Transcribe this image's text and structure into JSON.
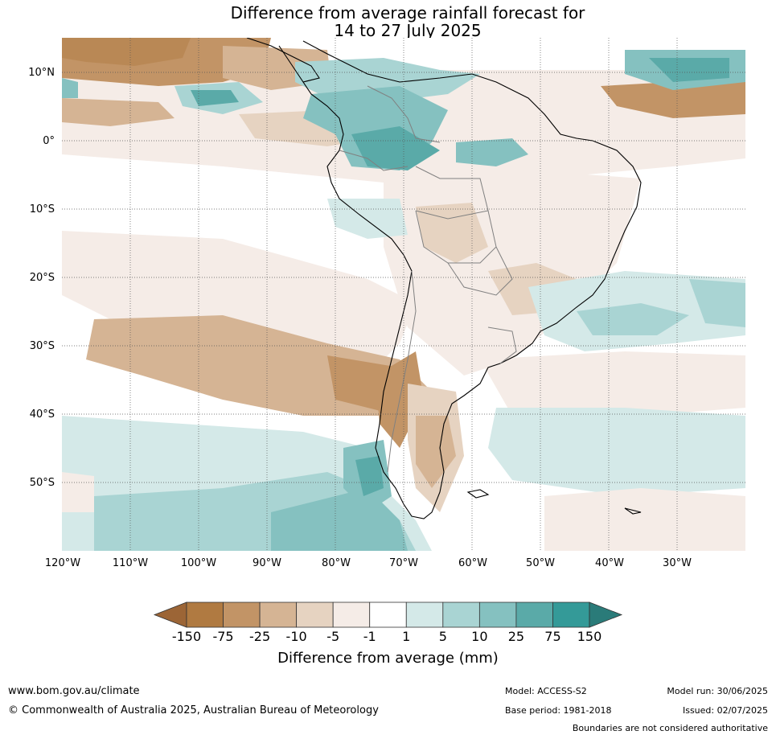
{
  "title_line1": "Difference from average rainfall forecast for",
  "title_line2": "14 to 27 July 2025",
  "map": {
    "lat_labels": [
      "10°N",
      "0°",
      "10°S",
      "20°S",
      "30°S",
      "40°S",
      "50°S"
    ],
    "lon_labels": [
      "120°W",
      "110°W",
      "100°W",
      "90°W",
      "80°W",
      "70°W",
      "60°W",
      "50°W",
      "40°W",
      "30°W"
    ],
    "grid": "dotted",
    "region": "South America",
    "lon_range": [
      "120°W",
      "20°W"
    ],
    "lat_range": [
      "15°N",
      "60°S"
    ]
  },
  "legend": {
    "label": "Difference from average (mm)",
    "ticks": [
      "-150",
      "-75",
      "-25",
      "-10",
      "-5",
      "-1",
      "1",
      "5",
      "10",
      "25",
      "75",
      "150"
    ],
    "colors": [
      "#9c6536",
      "#b07a41",
      "#c29466",
      "#d5b494",
      "#e6d3c1",
      "#f5ece7",
      "#ffffff",
      "#d4e9e8",
      "#a9d4d3",
      "#85c1c0",
      "#5aaaa8",
      "#349a98",
      "#2a7b79"
    ]
  },
  "footer": {
    "url": "www.bom.gov.au/climate",
    "copyright": "© Commonwealth of Australia 2025, Australian Bureau of Meteorology",
    "model": "Model: ACCESS-S2",
    "base_period": "Base period: 1981-2018",
    "model_run": "Model run: 30/06/2025",
    "issued": "Issued: 02/07/2025",
    "boundaries": "Boundaries are not considered authoritative"
  }
}
